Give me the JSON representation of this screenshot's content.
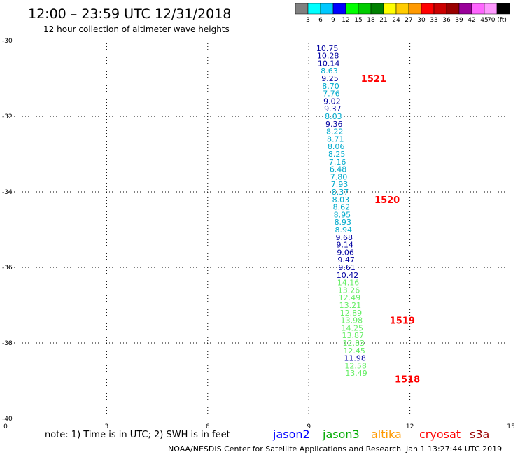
{
  "header": {
    "title": "12:00 – 23:59 UTC 12/31/2018",
    "subtitle": "12 hour collection of altimeter wave heights"
  },
  "colorbar": {
    "colors": [
      "#808080",
      "#00ffff",
      "#00c8ff",
      "#0000ff",
      "#00ff00",
      "#00cc00",
      "#008000",
      "#ffff00",
      "#ffcc00",
      "#ff9900",
      "#ff0000",
      "#cc0000",
      "#990000",
      "#990099",
      "#ff66ff",
      "#ff99ff",
      "#000000"
    ],
    "labels": [
      "3",
      "6",
      "9",
      "12",
      "15",
      "18",
      "21",
      "24",
      "27",
      "30",
      "33",
      "36",
      "39",
      "42",
      "45",
      "70 (ft)"
    ]
  },
  "missions": [
    {
      "name": "jason2",
      "color": "#0000ff"
    },
    {
      "name": "jason3",
      "color": "#00aa00"
    },
    {
      "name": "altika",
      "color": "#ff9900"
    },
    {
      "name": "cryosat",
      "color": "#ff0000"
    },
    {
      "name": "s3a",
      "color": "#990000"
    }
  ],
  "note": "note: 1) Time is in UTC; 2) SWH is in feet",
  "footer": {
    "credit": "NOAA/NESDIS Center for Satellite Applications and Research",
    "timestamp": "Jan  1 13:27:44 UTC 2019"
  },
  "chart_data": {
    "type": "scatter",
    "x_ticks": [
      "0",
      "3",
      "6",
      "9",
      "12",
      "15"
    ],
    "y_ticks": [
      "-30",
      "-32",
      "-34",
      "-36",
      "-38",
      "-40"
    ],
    "xlim": [
      0,
      15
    ],
    "ylim": [
      -40,
      -30
    ],
    "grid": true,
    "points": [
      {
        "x": 9.55,
        "y": -30.2,
        "v": "10.75",
        "c": "#0000a0"
      },
      {
        "x": 9.57,
        "y": -30.4,
        "v": "10.28",
        "c": "#0000a0"
      },
      {
        "x": 9.59,
        "y": -30.6,
        "v": "10.14",
        "c": "#0000a0"
      },
      {
        "x": 9.61,
        "y": -30.8,
        "v": "8.63",
        "c": "#00aacc"
      },
      {
        "x": 9.63,
        "y": -31.0,
        "v": "9.25",
        "c": "#0000a0"
      },
      {
        "x": 9.65,
        "y": -31.2,
        "v": "8.70",
        "c": "#00aacc"
      },
      {
        "x": 9.67,
        "y": -31.4,
        "v": "7.76",
        "c": "#00aacc"
      },
      {
        "x": 9.69,
        "y": -31.6,
        "v": "9.02",
        "c": "#0000a0"
      },
      {
        "x": 9.71,
        "y": -31.8,
        "v": "9.37",
        "c": "#0000a0"
      },
      {
        "x": 9.73,
        "y": -32.0,
        "v": "8.03",
        "c": "#00aacc"
      },
      {
        "x": 9.75,
        "y": -32.2,
        "v": "9.36",
        "c": "#0000a0"
      },
      {
        "x": 9.77,
        "y": -32.4,
        "v": "8.22",
        "c": "#00aacc"
      },
      {
        "x": 9.79,
        "y": -32.6,
        "v": "8.71",
        "c": "#00aacc"
      },
      {
        "x": 9.81,
        "y": -32.8,
        "v": "8.06",
        "c": "#00aacc"
      },
      {
        "x": 9.83,
        "y": -33.0,
        "v": "8.25",
        "c": "#00aacc"
      },
      {
        "x": 9.85,
        "y": -33.2,
        "v": "7.16",
        "c": "#00aacc"
      },
      {
        "x": 9.87,
        "y": -33.4,
        "v": "6.48",
        "c": "#00aacc"
      },
      {
        "x": 9.89,
        "y": -33.6,
        "v": "7.80",
        "c": "#00aacc"
      },
      {
        "x": 9.91,
        "y": -33.8,
        "v": "7.93",
        "c": "#00aacc"
      },
      {
        "x": 9.93,
        "y": -34.0,
        "v": "8.37",
        "c": "#00aacc"
      },
      {
        "x": 9.95,
        "y": -34.2,
        "v": "8.03",
        "c": "#00aacc"
      },
      {
        "x": 9.97,
        "y": -34.4,
        "v": "8.62",
        "c": "#00aacc"
      },
      {
        "x": 9.99,
        "y": -34.6,
        "v": "8.95",
        "c": "#00aacc"
      },
      {
        "x": 10.01,
        "y": -34.8,
        "v": "8.93",
        "c": "#00aacc"
      },
      {
        "x": 10.03,
        "y": -35.0,
        "v": "8.94",
        "c": "#00aacc"
      },
      {
        "x": 10.05,
        "y": -35.2,
        "v": "9.68",
        "c": "#0000a0"
      },
      {
        "x": 10.07,
        "y": -35.4,
        "v": "9.14",
        "c": "#0000a0"
      },
      {
        "x": 10.09,
        "y": -35.6,
        "v": "9.06",
        "c": "#0000a0"
      },
      {
        "x": 10.11,
        "y": -35.8,
        "v": "9.47",
        "c": "#0000a0"
      },
      {
        "x": 10.13,
        "y": -36.0,
        "v": "9.61",
        "c": "#0000a0"
      },
      {
        "x": 10.15,
        "y": -36.2,
        "v": "10.42",
        "c": "#0000a0"
      },
      {
        "x": 10.17,
        "y": -36.4,
        "v": "14.16",
        "c": "#66ee66"
      },
      {
        "x": 10.19,
        "y": -36.6,
        "v": "13.26",
        "c": "#66ee66"
      },
      {
        "x": 10.21,
        "y": -36.8,
        "v": "12.49",
        "c": "#66ee66"
      },
      {
        "x": 10.23,
        "y": -37.0,
        "v": "13.21",
        "c": "#66ee66"
      },
      {
        "x": 10.25,
        "y": -37.2,
        "v": "12.89",
        "c": "#66ee66"
      },
      {
        "x": 10.27,
        "y": -37.4,
        "v": "13.98",
        "c": "#66ee66"
      },
      {
        "x": 10.29,
        "y": -37.6,
        "v": "14.25",
        "c": "#66ee66"
      },
      {
        "x": 10.31,
        "y": -37.8,
        "v": "13.87",
        "c": "#66ee66"
      },
      {
        "x": 10.33,
        "y": -38.0,
        "v": "12.83",
        "c": "#66ee66"
      },
      {
        "x": 10.35,
        "y": -38.2,
        "v": "12.45",
        "c": "#66ee66"
      },
      {
        "x": 10.37,
        "y": -38.4,
        "v": "11.98",
        "c": "#0000a0"
      },
      {
        "x": 10.39,
        "y": -38.6,
        "v": "12.58",
        "c": "#66ee66"
      },
      {
        "x": 10.41,
        "y": -38.8,
        "v": "13.49",
        "c": "#66ee66"
      }
    ],
    "pass_labels": [
      {
        "x": 10.55,
        "y": -31.0,
        "text": "1521"
      },
      {
        "x": 10.95,
        "y": -34.2,
        "text": "1520"
      },
      {
        "x": 11.4,
        "y": -37.4,
        "text": "1519"
      },
      {
        "x": 11.55,
        "y": -38.95,
        "text": "1518"
      }
    ]
  }
}
